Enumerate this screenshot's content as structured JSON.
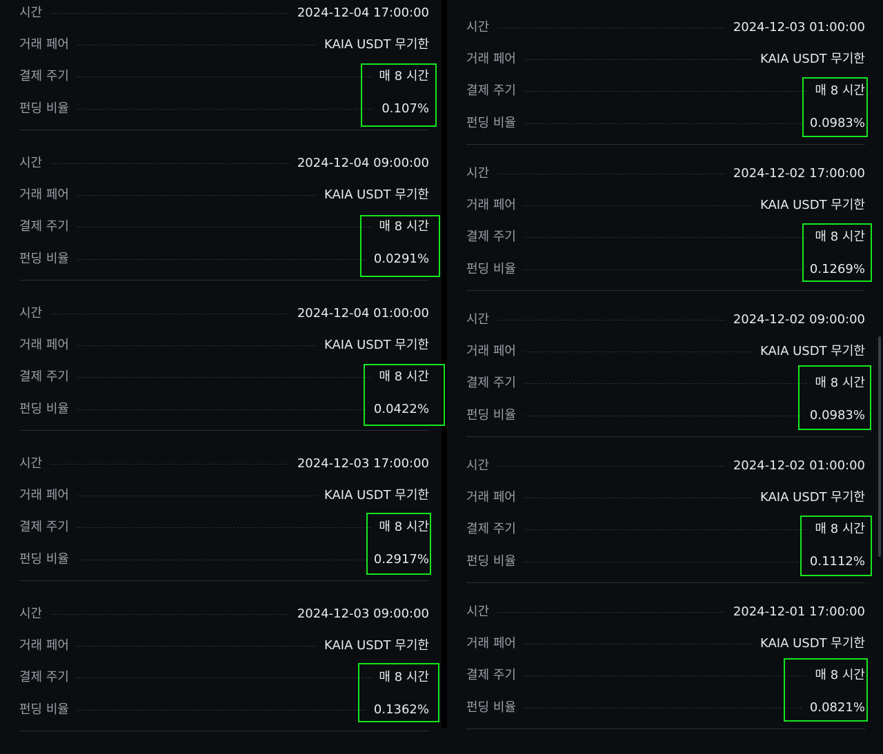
{
  "labels": {
    "time": "시간",
    "pair": "거래 페어",
    "cycle": "결제 주기",
    "rate": "펀딩 비율"
  },
  "colors": {
    "background": "#0b0e11",
    "label": "#9aa0a6",
    "value": "#eaecef",
    "highlight_box": "#14e81e"
  },
  "left_column": [
    {
      "time": "2024-12-04 17:00:00",
      "pair": "KAIA USDT 무기한",
      "cycle": "매 8 시간",
      "rate": "0.107%"
    },
    {
      "time": "2024-12-04 09:00:00",
      "pair": "KAIA USDT 무기한",
      "cycle": "매 8 시간",
      "rate": "0.0291%"
    },
    {
      "time": "2024-12-04 01:00:00",
      "pair": "KAIA USDT 무기한",
      "cycle": "매 8 시간",
      "rate": "0.0422%"
    },
    {
      "time": "2024-12-03 17:00:00",
      "pair": "KAIA USDT 무기한",
      "cycle": "매 8 시간",
      "rate": "0.2917%"
    },
    {
      "time": "2024-12-03 09:00:00",
      "pair": "KAIA USDT 무기한",
      "cycle": "매 8 시간",
      "rate": "0.1362%"
    }
  ],
  "right_column": [
    {
      "time": "2024-12-03 01:00:00",
      "pair": "KAIA USDT 무기한",
      "cycle": "매 8 시간",
      "rate": "0.0983%"
    },
    {
      "time": "2024-12-02 17:00:00",
      "pair": "KAIA USDT 무기한",
      "cycle": "매 8 시간",
      "rate": "0.1269%"
    },
    {
      "time": "2024-12-02 09:00:00",
      "pair": "KAIA USDT 무기한",
      "cycle": "매 8 시간",
      "rate": "0.0983%"
    },
    {
      "time": "2024-12-02 01:00:00",
      "pair": "KAIA USDT 무기한",
      "cycle": "매 8 시간",
      "rate": "0.1112%"
    },
    {
      "time": "2024-12-01 17:00:00",
      "pair": "KAIA USDT 무기한",
      "cycle": "매 8 시간",
      "rate": "0.0821%"
    }
  ]
}
